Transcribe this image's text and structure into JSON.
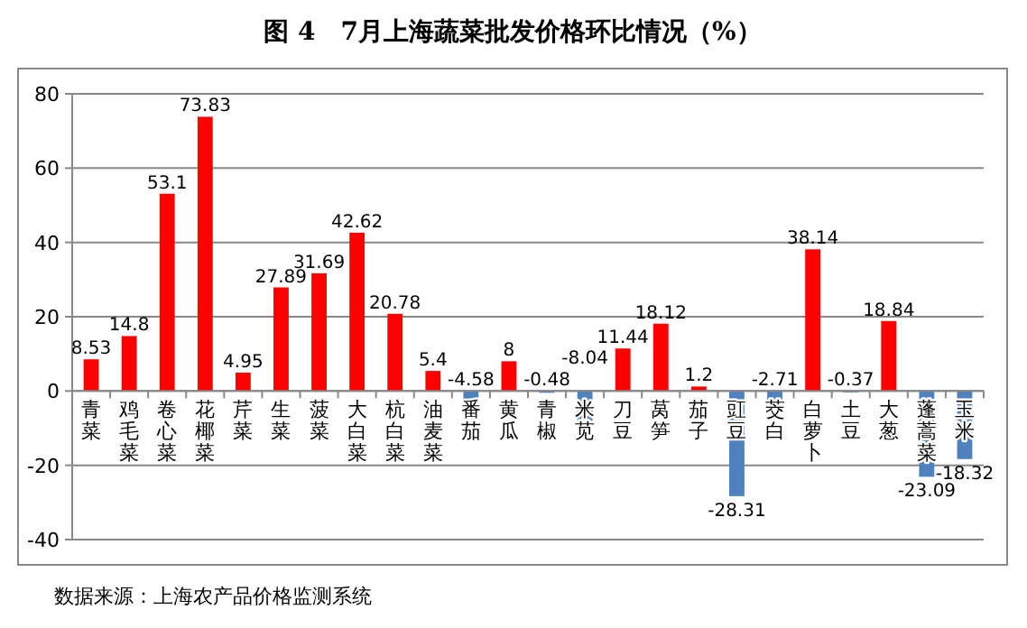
{
  "chart_data": {
    "type": "bar",
    "title": "图 4　7月上海蔬菜批发价格环比情况（%）",
    "categories": [
      "青菜",
      "鸡毛菜",
      "卷心菜",
      "花椰菜",
      "芹菜",
      "生菜",
      "菠菜",
      "大白菜",
      "杭白菜",
      "油麦菜",
      "番茄",
      "黄瓜",
      "青椒",
      "米苋",
      "刀豆",
      "莴笋",
      "茄子",
      "豇豆",
      "茭白",
      "白萝卜",
      "土豆",
      "大葱",
      "蓬蒿菜",
      "玉米"
    ],
    "values": [
      8.53,
      14.8,
      53.1,
      73.83,
      4.95,
      27.89,
      31.69,
      42.62,
      20.78,
      5.4,
      -4.58,
      8,
      -0.48,
      -8.04,
      11.44,
      18.12,
      1.2,
      -28.31,
      -2.71,
      38.14,
      -0.37,
      18.84,
      -23.09,
      -18.32
    ],
    "colors": [
      "#ff0000",
      "#ff0000",
      "#ff0000",
      "#ff0000",
      "#ff0000",
      "#ff0000",
      "#ff0000",
      "#ff0000",
      "#ff0000",
      "#ff0000",
      "#4f81bd",
      "#ff0000",
      "#4f81bd",
      "#4f81bd",
      "#ff0000",
      "#ff0000",
      "#ff0000",
      "#4f81bd",
      "#4f81bd",
      "#ff0000",
      "#4f81bd",
      "#ff0000",
      "#4f81bd",
      "#4f81bd"
    ],
    "ylim": [
      -40,
      80
    ],
    "yticks": [
      -40,
      -20,
      0,
      20,
      40,
      60,
      80
    ],
    "grid": "y",
    "data_labels": true,
    "annotations": [
      "数据来源：上海农产品价格监测系统"
    ]
  }
}
